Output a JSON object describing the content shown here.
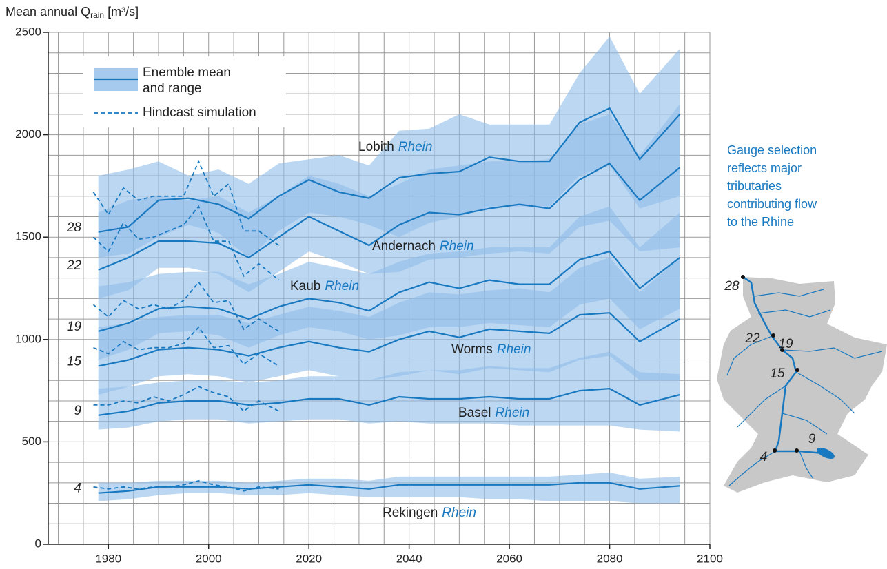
{
  "chart_data": {
    "type": "line",
    "y_label": {
      "main": "Mean annual Q",
      "sub": "rain",
      "unit": "[m³/s]"
    },
    "xlim": [
      1968,
      2100
    ],
    "xticks": [
      1980,
      2000,
      2020,
      2040,
      2060,
      2080,
      2100
    ],
    "ylim": [
      0,
      2500
    ],
    "yticks": [
      0,
      500,
      1000,
      1500,
      2000,
      2500
    ],
    "x_minor_step": 5,
    "y_minor_step": 100,
    "grid": true,
    "line_color": "#1878c0",
    "band_color": "#8fbde9",
    "legend": {
      "mean": [
        "Enemble mean",
        "and range"
      ],
      "hindcast": "Hindcast simulation"
    },
    "note": [
      "Gauge selection",
      "reflects major",
      "tributaries",
      "contributing flow",
      "to the Rhine"
    ],
    "x": [
      1978,
      1984,
      1990,
      1996,
      2002,
      2008,
      2014,
      2020,
      2026,
      2032,
      2038,
      2044,
      2050,
      2056,
      2062,
      2068,
      2074,
      2080,
      2086,
      2094
    ],
    "hindcast_x": [
      1977,
      1980,
      1983,
      1986,
      1989,
      1992,
      1995,
      1998,
      2001,
      2004,
      2007,
      2010,
      2014
    ],
    "gauges": [
      {
        "name": "Lobith",
        "river": "Rhein",
        "number": "28",
        "mean": [
          1525,
          1550,
          1680,
          1690,
          1660,
          1590,
          1700,
          1780,
          1720,
          1690,
          1790,
          1810,
          1820,
          1890,
          1870,
          1870,
          2060,
          2130,
          1880,
          2100
        ],
        "upper": [
          1800,
          1830,
          1870,
          1800,
          1830,
          1760,
          1860,
          1880,
          1900,
          1850,
          2020,
          2030,
          2100,
          2050,
          2050,
          2050,
          2300,
          2480,
          2200,
          2420
        ],
        "lower": [
          1400,
          1420,
          1500,
          1560,
          1520,
          1400,
          1530,
          1620,
          1600,
          1560,
          1500,
          1570,
          1600,
          1650,
          1650,
          1650,
          1800,
          1850,
          1640,
          1700
        ],
        "hindcast": [
          1720,
          1610,
          1740,
          1680,
          1700,
          1700,
          1700,
          1870,
          1700,
          1760,
          1530,
          1530,
          1460
        ]
      },
      {
        "name": "Andernach",
        "river": "Rhein",
        "number": "22",
        "mean": [
          1340,
          1400,
          1480,
          1480,
          1470,
          1400,
          1500,
          1600,
          1530,
          1460,
          1560,
          1620,
          1610,
          1640,
          1660,
          1640,
          1780,
          1860,
          1680,
          1840
        ],
        "upper": [
          1620,
          1680,
          1700,
          1680,
          1700,
          1620,
          1700,
          1800,
          1760,
          1700,
          1760,
          1830,
          1850,
          1870,
          1870,
          1880,
          2050,
          2100,
          1900,
          2150
        ],
        "lower": [
          1200,
          1240,
          1350,
          1350,
          1320,
          1230,
          1330,
          1430,
          1380,
          1320,
          1330,
          1390,
          1400,
          1420,
          1430,
          1420,
          1550,
          1580,
          1430,
          1450
        ],
        "hindcast": [
          1500,
          1430,
          1570,
          1490,
          1500,
          1530,
          1560,
          1650,
          1480,
          1480,
          1310,
          1370,
          1290
        ]
      },
      {
        "name": "Kaub",
        "river": "Rhein",
        "number": "19",
        "mean": [
          1040,
          1080,
          1150,
          1160,
          1150,
          1100,
          1160,
          1200,
          1180,
          1140,
          1230,
          1280,
          1250,
          1290,
          1270,
          1270,
          1390,
          1430,
          1250,
          1400
        ],
        "upper": [
          1260,
          1280,
          1320,
          1330,
          1330,
          1270,
          1320,
          1380,
          1350,
          1320,
          1380,
          1420,
          1430,
          1450,
          1450,
          1450,
          1600,
          1650,
          1450,
          1620
        ],
        "lower": [
          900,
          950,
          1030,
          1040,
          1020,
          960,
          1020,
          1060,
          1040,
          1000,
          1020,
          1060,
          1060,
          1080,
          1070,
          1060,
          1170,
          1200,
          1050,
          1150
        ],
        "hindcast": [
          1170,
          1110,
          1190,
          1150,
          1170,
          1150,
          1190,
          1280,
          1180,
          1190,
          1050,
          1100,
          1040
        ]
      },
      {
        "name": "Worms",
        "river": "Rhein",
        "number": "15",
        "mean": [
          870,
          900,
          950,
          960,
          950,
          920,
          960,
          990,
          960,
          940,
          1000,
          1040,
          1010,
          1050,
          1040,
          1030,
          1120,
          1130,
          990,
          1100
        ],
        "upper": [
          1060,
          1080,
          1110,
          1120,
          1120,
          1080,
          1120,
          1160,
          1140,
          1110,
          1180,
          1230,
          1220,
          1240,
          1250,
          1230,
          1350,
          1400,
          1230,
          1400
        ],
        "lower": [
          730,
          770,
          820,
          830,
          820,
          790,
          820,
          850,
          820,
          800,
          820,
          850,
          830,
          860,
          850,
          840,
          900,
          920,
          800,
          800
        ],
        "hindcast": [
          960,
          930,
          990,
          950,
          960,
          960,
          980,
          1060,
          960,
          970,
          880,
          930,
          870
        ]
      },
      {
        "name": "Basel",
        "river": "Rhein",
        "number": "9",
        "mean": [
          630,
          650,
          690,
          700,
          700,
          680,
          690,
          710,
          710,
          680,
          720,
          710,
          710,
          720,
          710,
          710,
          750,
          760,
          680,
          730
        ],
        "upper": [
          760,
          770,
          790,
          800,
          800,
          790,
          800,
          820,
          820,
          800,
          840,
          850,
          850,
          870,
          860,
          860,
          910,
          940,
          840,
          830
        ],
        "lower": [
          560,
          570,
          600,
          610,
          610,
          590,
          600,
          610,
          610,
          590,
          600,
          590,
          590,
          590,
          580,
          580,
          580,
          580,
          560,
          550
        ],
        "hindcast": [
          680,
          680,
          700,
          690,
          720,
          700,
          730,
          770,
          740,
          720,
          650,
          700,
          650
        ]
      },
      {
        "name": "Rekingen",
        "river": "Rhein",
        "number": "4",
        "mean": [
          250,
          260,
          280,
          280,
          280,
          270,
          280,
          290,
          280,
          270,
          290,
          290,
          290,
          290,
          290,
          290,
          300,
          300,
          270,
          285
        ],
        "upper": [
          300,
          300,
          310,
          310,
          310,
          300,
          310,
          320,
          320,
          310,
          330,
          330,
          330,
          330,
          330,
          330,
          340,
          350,
          320,
          330
        ],
        "lower": [
          210,
          220,
          240,
          250,
          250,
          240,
          240,
          250,
          240,
          230,
          230,
          230,
          230,
          220,
          220,
          210,
          210,
          210,
          200,
          200
        ],
        "hindcast": [
          280,
          270,
          280,
          270,
          280,
          280,
          290,
          310,
          290,
          280,
          260,
          280,
          270
        ]
      }
    ]
  }
}
